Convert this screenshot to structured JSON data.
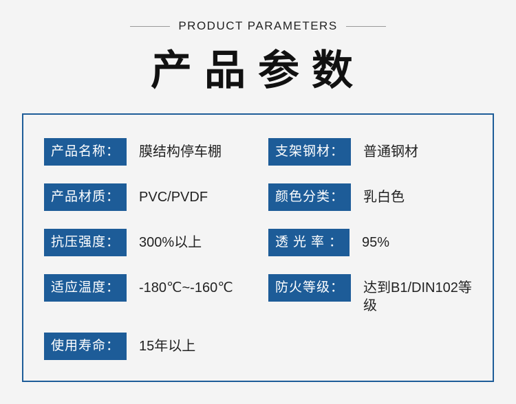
{
  "header": {
    "subtitle": "PRODUCT PARAMETERS",
    "title": "产品参数"
  },
  "colors": {
    "label_bg": "#1d5c98",
    "label_text": "#ffffff",
    "border": "#1d5c98",
    "page_bg": "#f4f4f4",
    "text": "#222222"
  },
  "params": {
    "name": {
      "label": "产品名称：",
      "value": "膜结构停车棚"
    },
    "steel": {
      "label": "支架钢材：",
      "value": "普通钢材"
    },
    "material": {
      "label": "产品材质：",
      "value": "PVC/PVDF"
    },
    "color": {
      "label": "颜色分类：",
      "value": "乳白色"
    },
    "strength": {
      "label": "抗压强度：",
      "value": "300%以上"
    },
    "light": {
      "label": "透光率：",
      "value": "95%"
    },
    "temp": {
      "label": "适应温度：",
      "value": "-180℃~-160℃"
    },
    "fire": {
      "label": "防火等级：",
      "value": "达到B1/DIN102等级"
    },
    "life": {
      "label": "使用寿命：",
      "value": "15年以上"
    }
  }
}
